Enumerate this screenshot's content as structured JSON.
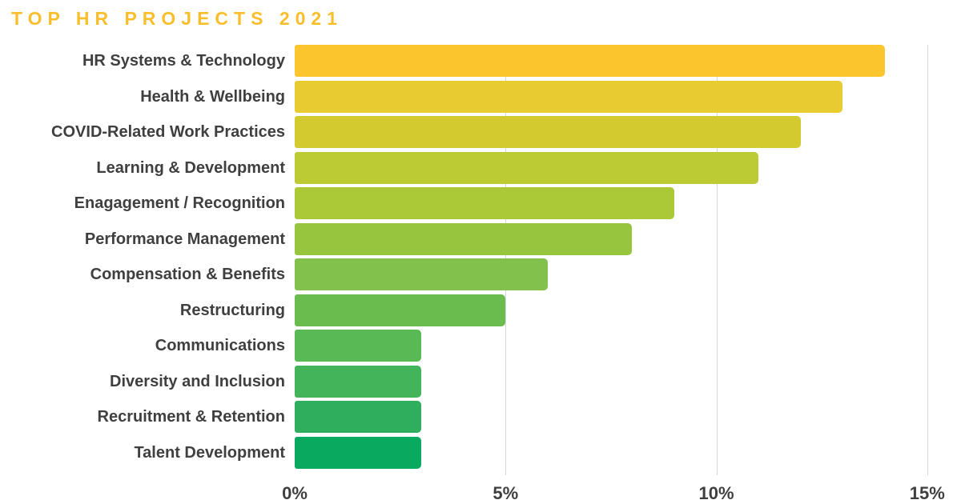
{
  "chart_data": {
    "type": "bar",
    "orientation": "horizontal",
    "title": "TOP HR PROJECTS 2021",
    "categories": [
      "HR Systems & Technology",
      "Health & Wellbeing",
      "COVID-Related Work Practices",
      "Learning & Development",
      "Enagagement / Recognition",
      "Performance Management",
      "Compensation & Benefits",
      "Restructuring",
      "Communications",
      "Diversity and Inclusion",
      "Recruitment & Retention",
      "Talent Development"
    ],
    "values": [
      14,
      13,
      12,
      11,
      9,
      8,
      6,
      5,
      3,
      3,
      3,
      3
    ],
    "unit": "%",
    "xlabel": "",
    "ylabel": "",
    "xlim": [
      0,
      15
    ],
    "x_ticks": [
      0,
      5,
      10,
      15
    ],
    "x_tick_labels": [
      "0%",
      "5%",
      "10%",
      "15%"
    ],
    "grid": "vertical-lines-at-5-10-15",
    "legend": "none",
    "bar_colors": [
      "#FBC52D",
      "#E8CB30",
      "#D3CA2F",
      "#BCCA33",
      "#ABC836",
      "#97C53D",
      "#82C14B",
      "#6BBC4F",
      "#59B954",
      "#44B45A",
      "#2FAE5D",
      "#0AA960"
    ],
    "colors": {
      "title": "#F8BE2C",
      "label_text": "#3F3F3F",
      "axis_text": "#3F3F3F",
      "gridline": "#D6D6D6",
      "background": "#FFFFFF"
    }
  }
}
